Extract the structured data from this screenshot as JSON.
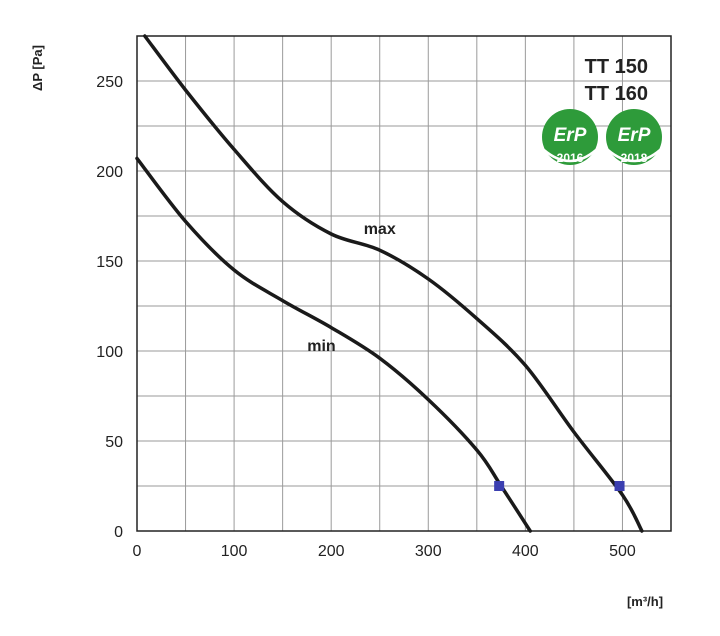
{
  "chart_data": {
    "type": "line",
    "xlabel": "[m³/h]",
    "ylabel": "ΔP [Pa]",
    "xlim": [
      0,
      550
    ],
    "ylim": [
      0,
      275
    ],
    "x_ticks": [
      0,
      100,
      200,
      300,
      400,
      500
    ],
    "y_ticks": [
      0,
      50,
      100,
      150,
      200,
      250
    ],
    "grid": true,
    "models": [
      "TT 150",
      "TT 160"
    ],
    "badges": [
      {
        "text": "ErP",
        "year": "2016",
        "color": "#2e9b3a"
      },
      {
        "text": "ErP",
        "year": "2018",
        "color": "#2e9b3a"
      }
    ],
    "series": [
      {
        "name": "max",
        "label_at": [
          250,
          165
        ],
        "x": [
          8,
          50,
          100,
          150,
          200,
          250,
          300,
          350,
          400,
          450,
          500,
          520
        ],
        "y": [
          275,
          245,
          212,
          183,
          165,
          156,
          140,
          118,
          92,
          55,
          20,
          0
        ],
        "marker": [
          497,
          25
        ]
      },
      {
        "name": "min",
        "label_at": [
          190,
          100
        ],
        "x": [
          0,
          50,
          100,
          150,
          200,
          250,
          300,
          350,
          375,
          405
        ],
        "y": [
          207,
          172,
          145,
          128,
          113,
          96,
          73,
          45,
          25,
          0
        ],
        "marker": [
          373,
          25
        ]
      }
    ]
  }
}
